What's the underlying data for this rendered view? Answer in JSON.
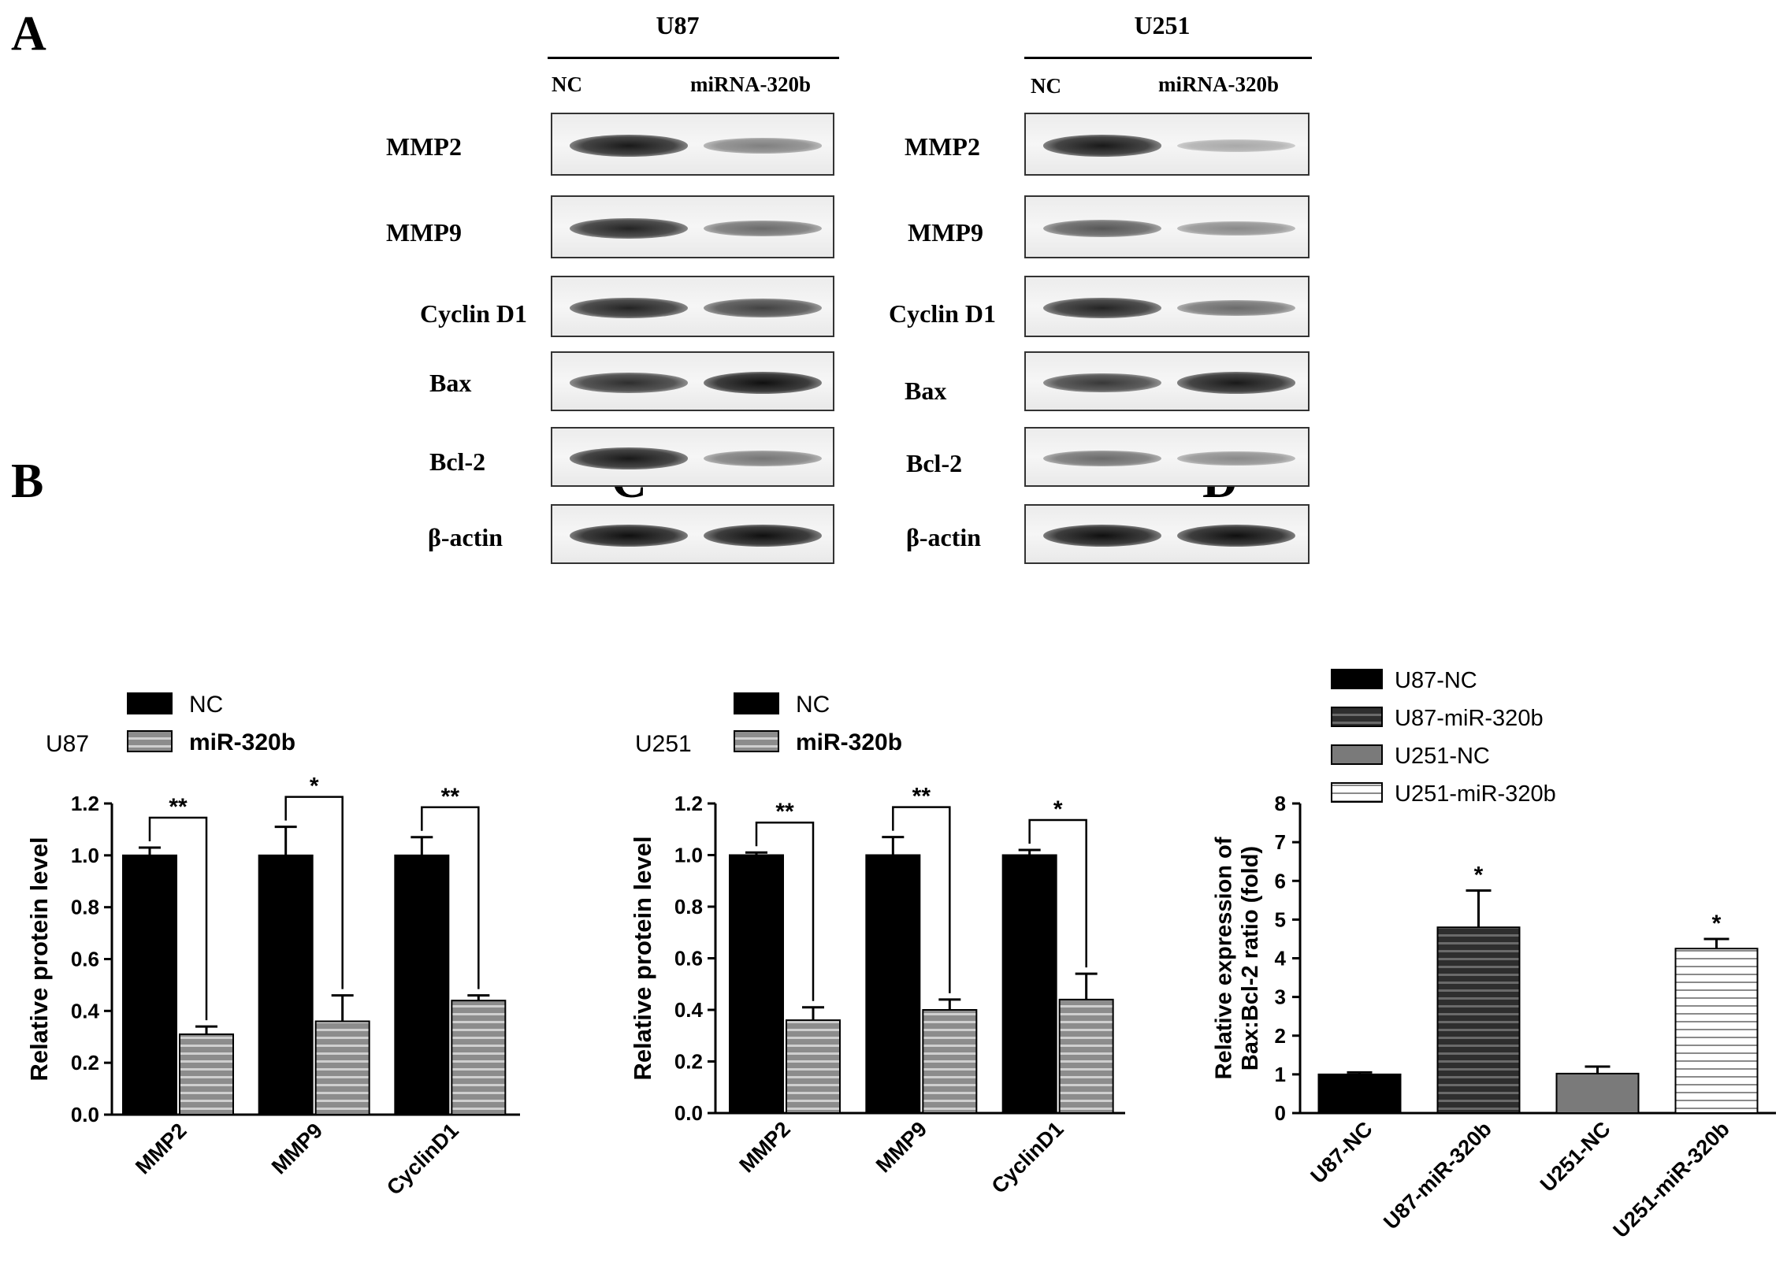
{
  "panel_letters": {
    "A": "A",
    "B": "B",
    "C": "C",
    "D": "D"
  },
  "western_blot": {
    "cells": [
      {
        "title": "U87",
        "lanes": [
          "NC",
          "miRNA-320b"
        ]
      },
      {
        "title": "U251",
        "lanes": [
          "NC",
          "miRNA-320b"
        ]
      }
    ],
    "proteins": [
      "MMP2",
      "MMP9",
      "Cyclin D1",
      "Bax",
      "Bcl-2",
      "β-actin"
    ]
  },
  "chart_data": [
    {
      "panel": "B",
      "type": "bar",
      "cell_line": "U87",
      "categories": [
        "MMP2",
        "MMP9",
        "CyclinD1"
      ],
      "series": [
        {
          "name": "NC",
          "values": [
            1.0,
            1.0,
            1.0
          ],
          "errors": [
            0.03,
            0.11,
            0.07
          ],
          "color": "#000000",
          "pattern": "solid"
        },
        {
          "name": "miR-320b",
          "values": [
            0.31,
            0.36,
            0.44
          ],
          "errors": [
            0.03,
            0.1,
            0.02
          ],
          "color": "#9a9a9a",
          "pattern": "horizontal-stripes"
        }
      ],
      "significance": [
        "**",
        "*",
        "**"
      ],
      "ylabel": "Relative protein level",
      "ylim": [
        0,
        1.2
      ],
      "yticks": [
        "0.0",
        "0.2",
        "0.4",
        "0.6",
        "0.8",
        "1.0",
        "1.2"
      ],
      "legend": "top-left"
    },
    {
      "panel": "C",
      "type": "bar",
      "cell_line": "U251",
      "categories": [
        "MMP2",
        "MMP9",
        "CyclinD1"
      ],
      "series": [
        {
          "name": "NC",
          "values": [
            1.0,
            1.0,
            1.0
          ],
          "errors": [
            0.01,
            0.07,
            0.02
          ],
          "color": "#000000",
          "pattern": "solid"
        },
        {
          "name": "miR-320b",
          "values": [
            0.36,
            0.4,
            0.44
          ],
          "errors": [
            0.05,
            0.04,
            0.1
          ],
          "color": "#9a9a9a",
          "pattern": "horizontal-stripes"
        }
      ],
      "significance": [
        "**",
        "**",
        "*"
      ],
      "ylabel": "Relative protein level",
      "ylim": [
        0,
        1.2
      ],
      "yticks": [
        "0.0",
        "0.2",
        "0.4",
        "0.6",
        "0.8",
        "1.0",
        "1.2"
      ],
      "legend": "top-left"
    },
    {
      "panel": "D",
      "type": "bar",
      "categories": [
        "U87-NC",
        "U87-miR-320b",
        "U251-NC",
        "U251-miR-320b"
      ],
      "legend_labels": [
        "U87-NC",
        "U87-miR-320b",
        "U251-NC",
        "U251-miR-320b"
      ],
      "values": [
        1.0,
        4.8,
        1.02,
        4.25
      ],
      "errors": [
        0.05,
        0.95,
        0.18,
        0.25
      ],
      "colors": [
        "#000000",
        "#3a3a3a",
        "#7a7a7a",
        "#f2f2f2"
      ],
      "patterns": [
        "solid",
        "horizontal-stripes",
        "solid",
        "horizontal-stripes"
      ],
      "significance": [
        "",
        "*",
        "",
        "*"
      ],
      "ylabel": "Relative expression of\nBax:Bcl-2 ratio (fold)",
      "ylim": [
        0,
        8
      ],
      "yticks": [
        "0",
        "1",
        "2",
        "3",
        "4",
        "5",
        "6",
        "7",
        "8"
      ],
      "legend": "top"
    }
  ]
}
